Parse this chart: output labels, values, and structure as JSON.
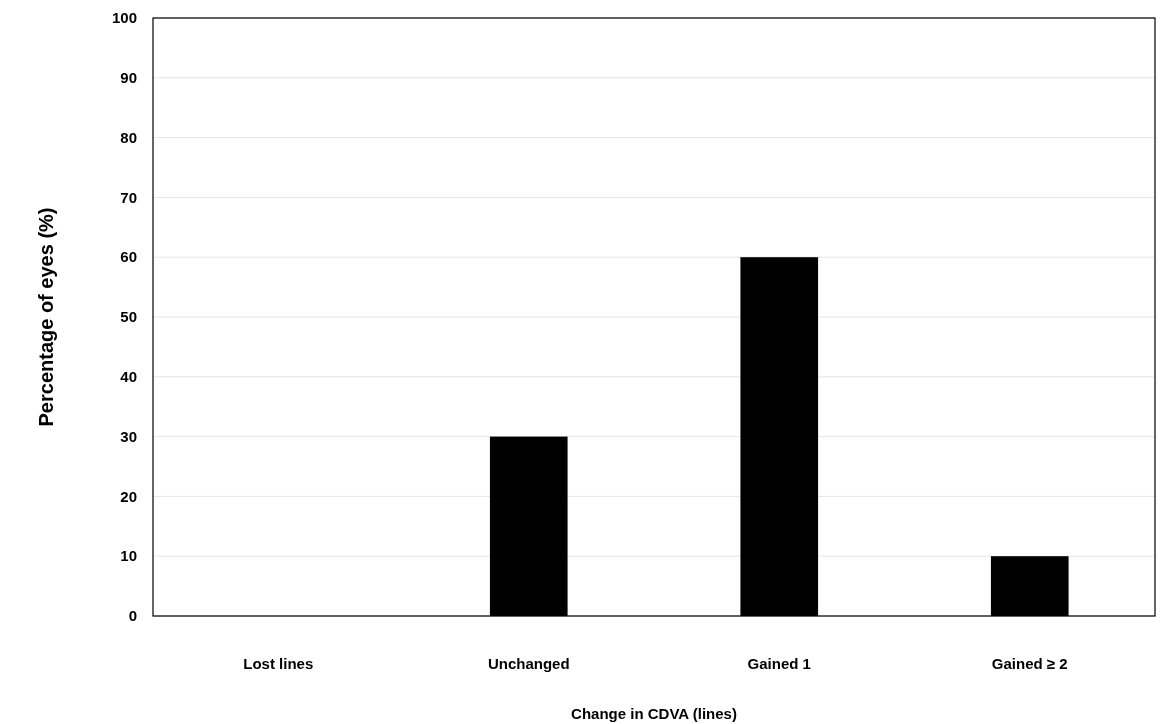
{
  "chart_data": {
    "type": "bar",
    "xlabel": "Change in CDVA (lines)",
    "ylabel": "Percentage of eyes (%)",
    "categories": [
      "Lost lines",
      "Unchanged",
      "Gained 1",
      "Gained ≥ 2"
    ],
    "values": [
      0,
      30,
      60,
      10
    ],
    "color": "#000000",
    "ylim": [
      0,
      100
    ],
    "yticks": [
      0,
      10,
      20,
      30,
      40,
      50,
      60,
      70,
      80,
      90,
      100
    ],
    "grid": "y"
  }
}
